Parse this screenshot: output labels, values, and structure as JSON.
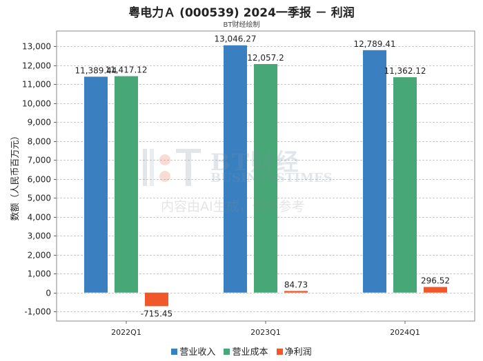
{
  "title": "粤电力Ａ (000539) 2024一季报  －  利润",
  "subtitle": "BT财经绘制",
  "watermark": {
    "brand": "BT财经",
    "brand_en": "BUSINESSTIMES",
    "notice": "内容由AI生成，仅供参考"
  },
  "chart_data": {
    "type": "bar",
    "categories": [
      "2022Q1",
      "2023Q1",
      "2024Q1"
    ],
    "ylabel": "数额（人民币百万元）",
    "ylim": [
      -1500,
      13800
    ],
    "yticks": [
      -1000,
      0,
      1000,
      2000,
      3000,
      4000,
      5000,
      6000,
      7000,
      8000,
      9000,
      10000,
      11000,
      12000,
      13000
    ],
    "ytick_labels": [
      "-1,000",
      "0",
      "1,000",
      "2,000",
      "3,000",
      "4,000",
      "5,000",
      "6,000",
      "7,000",
      "8,000",
      "9,000",
      "10,000",
      "11,000",
      "12,000",
      "13,000"
    ],
    "grid": true,
    "legend_position": "bottom",
    "series": [
      {
        "name": "营业收入",
        "color": "#3a80c1",
        "values": [
          11389.44,
          13046.27,
          12789.41
        ],
        "labels": [
          "11,389.44",
          "13,046.27",
          "12,789.41"
        ]
      },
      {
        "name": "营业成本",
        "color": "#47a776",
        "values": [
          11417.12,
          12057.2,
          11362.12
        ],
        "labels": [
          "11,417.12",
          "12,057.2",
          "11,362.12"
        ]
      },
      {
        "name": "净利润",
        "color": "#f0572a",
        "values": [
          -715.45,
          84.73,
          296.52
        ],
        "labels": [
          "-715.45",
          "84.73",
          "296.52"
        ]
      }
    ]
  }
}
